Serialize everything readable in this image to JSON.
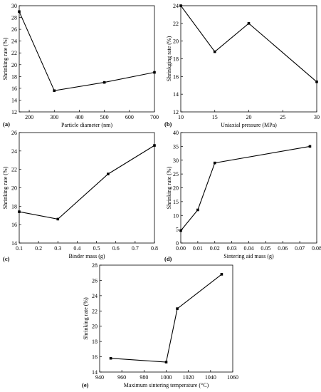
{
  "chart_data": [
    {
      "type": "line",
      "panel_label": "(a)",
      "xlabel": "Particle diameter (nm)",
      "ylabel": "Shrinking rate (%)",
      "xlim": [
        160,
        700
      ],
      "ylim": [
        12,
        30
      ],
      "xticks": [
        200,
        300,
        400,
        500,
        600,
        700
      ],
      "yticks": [
        12,
        14,
        16,
        18,
        20,
        22,
        24,
        26,
        28,
        30
      ],
      "x": [
        160,
        300,
        500,
        700
      ],
      "y": [
        29.0,
        15.6,
        17.0,
        18.7
      ]
    },
    {
      "type": "line",
      "panel_label": "(b)",
      "xlabel": "Uniaxial pressure (MPa)",
      "ylabel": "Shrinkging rate (%)",
      "xlim": [
        10,
        30
      ],
      "ylim": [
        12,
        24
      ],
      "xticks": [
        10,
        15,
        20,
        25,
        30
      ],
      "yticks": [
        12,
        14,
        16,
        18,
        20,
        22,
        24
      ],
      "x": [
        10,
        15,
        20,
        30
      ],
      "y": [
        24.0,
        18.8,
        22.0,
        15.4
      ]
    },
    {
      "type": "line",
      "panel_label": "(c)",
      "xlabel": "Binder mass (g)",
      "ylabel": "Shrinking rate (%)",
      "xlim": [
        0.1,
        0.8
      ],
      "ylim": [
        14,
        26
      ],
      "xticks": [
        0.1,
        0.2,
        0.3,
        0.4,
        0.5,
        0.6,
        0.7,
        0.8
      ],
      "yticks": [
        14,
        16,
        18,
        20,
        22,
        24,
        26
      ],
      "x": [
        0.1,
        0.3,
        0.56,
        0.8
      ],
      "y": [
        17.4,
        16.6,
        21.5,
        24.6
      ]
    },
    {
      "type": "line",
      "panel_label": "(d)",
      "xlabel": "Sintering aid mass (g)",
      "ylabel": "Shrinking rate (%)",
      "xlim": [
        0,
        0.08
      ],
      "ylim": [
        0,
        40
      ],
      "xticks": [
        0.0,
        0.01,
        0.02,
        0.03,
        0.04,
        0.05,
        0.06,
        0.07,
        0.08
      ],
      "yticks": [
        0,
        5,
        10,
        15,
        20,
        25,
        30,
        35,
        40
      ],
      "x": [
        0,
        0.01,
        0.02,
        0.076
      ],
      "y": [
        4.5,
        12.0,
        29.0,
        35.0
      ]
    },
    {
      "type": "line",
      "panel_label": "(e)",
      "xlabel": "Maximum sintering temperature (°C)",
      "ylabel": "Shrinking rate (%)",
      "xlim": [
        940,
        1060
      ],
      "ylim": [
        14,
        28
      ],
      "xticks": [
        940,
        960,
        980,
        1000,
        1020,
        1040,
        1060
      ],
      "yticks": [
        14,
        16,
        18,
        20,
        22,
        24,
        26,
        28
      ],
      "x": [
        950,
        1000,
        1010,
        1050
      ],
      "y": [
        15.8,
        15.3,
        22.3,
        26.8
      ]
    }
  ]
}
